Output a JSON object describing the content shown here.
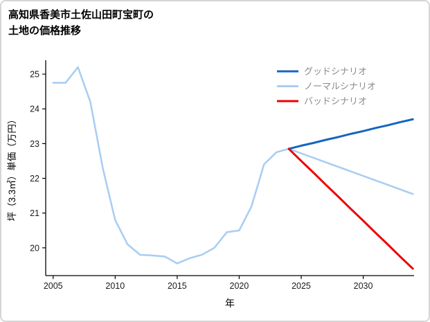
{
  "title": {
    "line1": "高知県香美市土佐山田町宝町の",
    "line2": "土地の価格推移"
  },
  "chart_data": {
    "type": "line",
    "title": "高知県香美市土佐山田町宝町の土地の価格推移",
    "xlabel": "年",
    "ylabel": "坪（3.3㎡）単価（万円）",
    "xlim": [
      2004.4,
      2034.1
    ],
    "ylim": [
      19.2,
      25.4
    ],
    "x_ticks": [
      2005,
      2010,
      2015,
      2020,
      2025,
      2030
    ],
    "y_ticks": [
      20,
      21,
      22,
      23,
      24,
      25
    ],
    "grid": false,
    "legend_position": "upper right",
    "axis_color": "#000000",
    "tick_label_color": "#1a1a1a",
    "legend_text_color": "#8a8a8a",
    "series": [
      {
        "name": "ノーマルシナリオ",
        "color": "#a9cef2",
        "width": 2.6,
        "x": [
          2005,
          2006,
          2007,
          2008,
          2009,
          2010,
          2011,
          2012,
          2013,
          2014,
          2015,
          2016,
          2017,
          2018,
          2019,
          2020,
          2021,
          2022,
          2023,
          2024,
          2025,
          2026,
          2027,
          2028,
          2029,
          2030,
          2031,
          2032,
          2033,
          2034
        ],
        "values": [
          24.75,
          24.75,
          25.2,
          24.2,
          22.3,
          20.8,
          20.1,
          19.8,
          19.78,
          19.75,
          19.55,
          19.7,
          19.8,
          20.0,
          20.45,
          20.5,
          21.2,
          22.4,
          22.75,
          22.85,
          22.72,
          22.59,
          22.46,
          22.33,
          22.2,
          22.07,
          21.94,
          21.81,
          21.68,
          21.55
        ]
      },
      {
        "name": "グッドシナリオ",
        "color": "#1565c0",
        "width": 3,
        "x": [
          2024,
          2025,
          2026,
          2027,
          2028,
          2029,
          2030,
          2031,
          2032,
          2033,
          2034
        ],
        "values": [
          22.85,
          22.94,
          23.02,
          23.11,
          23.19,
          23.28,
          23.36,
          23.45,
          23.53,
          23.62,
          23.7
        ]
      },
      {
        "name": "バッドシナリオ",
        "color": "#ee0000",
        "width": 3,
        "x": [
          2024,
          2025,
          2026,
          2027,
          2028,
          2029,
          2030,
          2031,
          2032,
          2033,
          2034
        ],
        "values": [
          22.85,
          22.5,
          22.16,
          21.81,
          21.47,
          21.12,
          20.78,
          20.43,
          20.09,
          19.74,
          19.4
        ]
      }
    ],
    "legend": [
      {
        "label": "グッドシナリオ",
        "color": "#1565c0"
      },
      {
        "label": "ノーマルシナリオ",
        "color": "#a9cef2"
      },
      {
        "label": "バッドシナリオ",
        "color": "#ee0000"
      }
    ]
  }
}
